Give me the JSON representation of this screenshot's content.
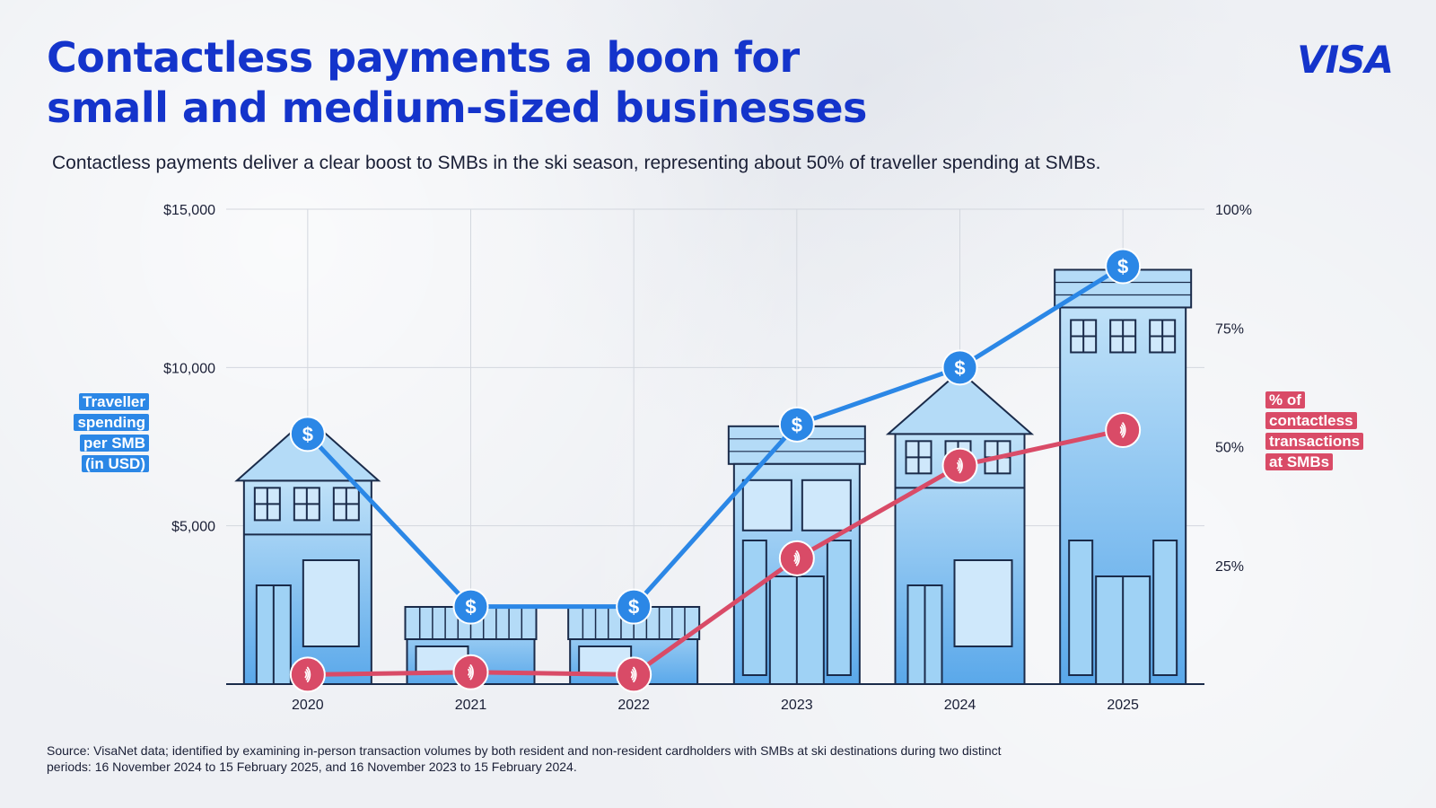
{
  "header": {
    "title_line1": "Contactless payments a boon for",
    "title_line2": "small and medium-sized businesses",
    "logo_text": "VISA",
    "subtitle": "Contactless payments deliver a clear boost to SMBs in the ski season, representing about 50% of traveller spending at SMBs."
  },
  "chart_data": {
    "type": "line",
    "x": [
      "2020",
      "2021",
      "2022",
      "2023",
      "2024",
      "2025"
    ],
    "series": [
      {
        "name": "Traveller spending per SMB (in USD)",
        "axis": "left",
        "values": [
          7900,
          2450,
          2450,
          8200,
          10000,
          13200
        ],
        "color": "#2b87e6",
        "marker": "dollar-icon"
      },
      {
        "name": "% of contactless transactions at SMBs",
        "axis": "right",
        "values": [
          2,
          2.5,
          2,
          26.5,
          46,
          53.5
        ],
        "color": "#d94b67",
        "marker": "contactless-icon"
      }
    ],
    "y_left": {
      "ylim": [
        0,
        15000
      ],
      "ticks": [
        5000,
        10000,
        15000
      ],
      "tick_labels": [
        "$5,000",
        "$10,000",
        "$15,000"
      ]
    },
    "y_right": {
      "ylim": [
        0,
        100
      ],
      "ticks": [
        25,
        50,
        75,
        100
      ],
      "tick_labels": [
        "25%",
        "50%",
        "75%",
        "100%"
      ]
    },
    "ylabel_left_lines": [
      "Traveller",
      "spending",
      "per SMB",
      "(in USD)"
    ],
    "ylabel_right_lines": [
      "% of",
      "contactless",
      "transactions",
      "at SMBs"
    ],
    "grid": true,
    "background_illustration": "storefront buildings, one per year"
  },
  "footer": {
    "source_line1": "Source: VisaNet data; identified by examining in-person transaction volumes by both resident and non-resident cardholders with SMBs at ski destinations during two distinct",
    "source_line2": "periods: 16 November 2024 to 15 February 2025, and 16 November 2023 to 15 February 2024."
  },
  "colors": {
    "brand": "#1434cb",
    "spending": "#2b87e6",
    "contactless": "#d94b67",
    "building_fill": "#8ec8f2",
    "building_stroke": "#1a2b4a"
  }
}
